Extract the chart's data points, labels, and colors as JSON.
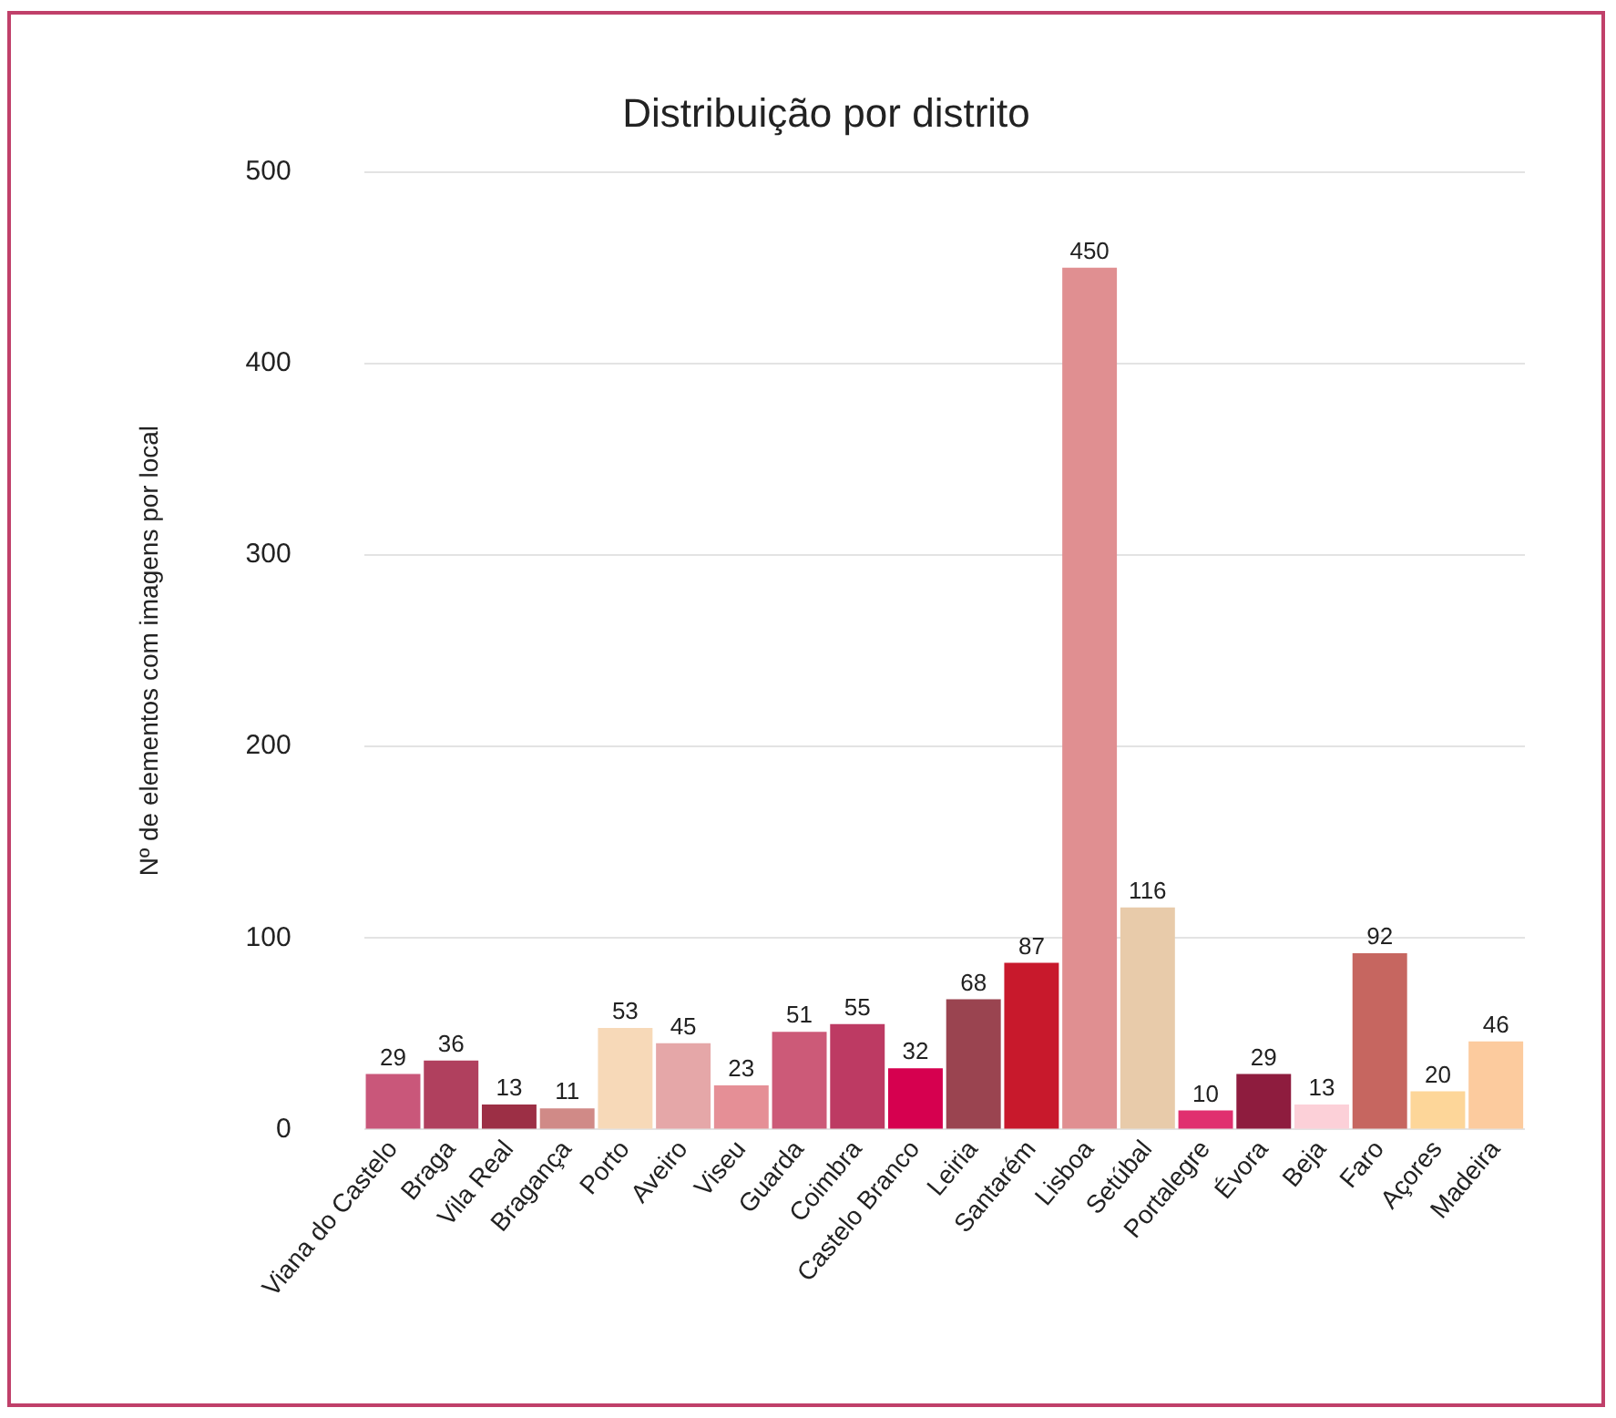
{
  "chart_data": {
    "type": "bar",
    "title": "Distribuição por distrito",
    "ylabel": "Nº de elementos com imagens por local",
    "categories": [
      "Viana do Castelo",
      "Braga",
      "Vila Real",
      "Bragança",
      "Porto",
      "Aveiro",
      "Viseu",
      "Guarda",
      "Coimbra",
      "Castelo Branco",
      "Leiria",
      "Santarém",
      "Lisboa",
      "Setúbal",
      "Portalegre",
      "Évora",
      "Beja",
      "Faro",
      "Açores",
      "Madeira"
    ],
    "values": [
      29,
      36,
      13,
      11,
      53,
      45,
      23,
      51,
      55,
      32,
      68,
      87,
      450,
      116,
      10,
      29,
      13,
      92,
      20,
      46
    ],
    "colors": [
      "#c9577a",
      "#b0405e",
      "#9c2f45",
      "#d08a87",
      "#f7d9b8",
      "#e5a7a8",
      "#e58f96",
      "#cc5a78",
      "#bd3a63",
      "#d6004f",
      "#9a4450",
      "#c8192c",
      "#e08f91",
      "#e8cbaa",
      "#e0306f",
      "#8e1c3e",
      "#fcd0d8",
      "#c66660",
      "#fdd699",
      "#fccb9e"
    ],
    "ylim": [
      0,
      500
    ],
    "yticks": [
      0,
      100,
      200,
      300,
      400,
      500
    ],
    "grid": "y",
    "data_labels": true,
    "legend": false
  }
}
